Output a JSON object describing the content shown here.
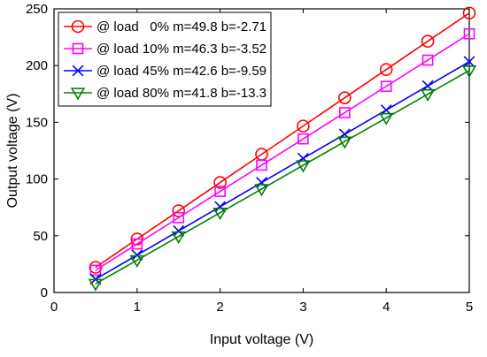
{
  "chart_data": {
    "type": "line",
    "xlabel": "Input voltage (V)",
    "ylabel": "Output voltage (V)",
    "xlim": [
      0,
      5
    ],
    "ylim": [
      0,
      250
    ],
    "xticks": [
      0,
      1,
      2,
      3,
      4,
      5
    ],
    "yticks": [
      0,
      50,
      100,
      150,
      200,
      250
    ],
    "grid": false,
    "legend_position": "top-left",
    "x": [
      0.5,
      1.0,
      1.5,
      2.0,
      2.5,
      3.0,
      3.5,
      4.0,
      4.5,
      5.0
    ],
    "series": [
      {
        "name": "@ load   0% m=49.8 b=-2.71",
        "color": "#ff0000",
        "marker": "circle",
        "values": [
          22.2,
          47.1,
          72.0,
          96.9,
          121.8,
          146.7,
          171.6,
          196.5,
          221.4,
          246.3
        ]
      },
      {
        "name": "@ load 10% m=46.3 b=-3.52",
        "color": "#ff00ff",
        "marker": "square",
        "values": [
          19.6,
          42.8,
          65.9,
          89.1,
          112.2,
          135.4,
          158.5,
          181.7,
          204.8,
          228.0
        ]
      },
      {
        "name": "@ load 45% m=42.6 b=-9.59",
        "color": "#0000ff",
        "marker": "x",
        "values": [
          11.7,
          33.0,
          54.3,
          75.6,
          96.9,
          118.2,
          139.5,
          160.8,
          182.1,
          203.4
        ]
      },
      {
        "name": "@ load 80% m=41.8 b=-13.3",
        "color": "#008000",
        "marker": "triangle-down",
        "values": [
          7.6,
          28.5,
          49.4,
          70.3,
          91.2,
          112.1,
          133.0,
          153.9,
          174.8,
          195.7
        ]
      }
    ]
  }
}
